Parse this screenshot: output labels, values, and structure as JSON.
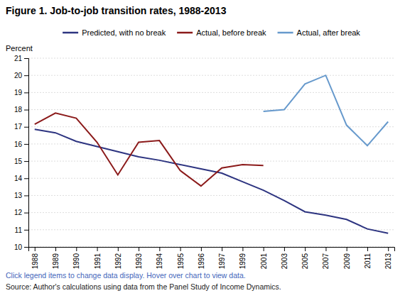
{
  "chart_data": {
    "type": "line",
    "title": "Figure 1. Job-to-job transition rates, 1988-2013",
    "y_label": "Percent",
    "categories": [
      "1988",
      "1989",
      "1990",
      "1991",
      "1992",
      "1993",
      "1994",
      "1995",
      "1996",
      "1997",
      "1999",
      "2001",
      "2003",
      "2005",
      "2007",
      "2009",
      "2011",
      "2013"
    ],
    "series": [
      {
        "name": "Predicted, with no break",
        "color": "#2d3480",
        "values": [
          16.85,
          16.65,
          16.15,
          15.85,
          15.55,
          15.25,
          15.05,
          14.8,
          14.55,
          14.3,
          13.8,
          13.3,
          12.7,
          12.05,
          11.85,
          11.6,
          11.05,
          10.8
        ]
      },
      {
        "name": "Actual, before break",
        "color": "#8b1a1a",
        "values": [
          17.15,
          17.8,
          17.5,
          16.1,
          14.2,
          16.1,
          16.2,
          14.45,
          13.55,
          14.6,
          14.8,
          14.75,
          null,
          null,
          null,
          null,
          null,
          null
        ]
      },
      {
        "name": "Actual, after break",
        "color": "#6699cc",
        "values": [
          null,
          null,
          null,
          null,
          null,
          null,
          null,
          null,
          null,
          null,
          null,
          17.9,
          18.0,
          19.5,
          20.0,
          17.1,
          15.9,
          17.3
        ]
      }
    ],
    "ylim": [
      10,
      21
    ],
    "yticks": [
      10,
      11,
      12,
      13,
      14,
      15,
      16,
      17,
      18,
      19,
      20,
      21
    ],
    "grid": true,
    "legend": "top",
    "annotations": [
      {
        "text": "Click legend items to change data display. Hover over chart to view data.",
        "color": "#4466bb"
      },
      {
        "text": "Source: Author's calculations using data from the Panel Study of Income Dynamics.",
        "color": "#222222"
      }
    ]
  }
}
